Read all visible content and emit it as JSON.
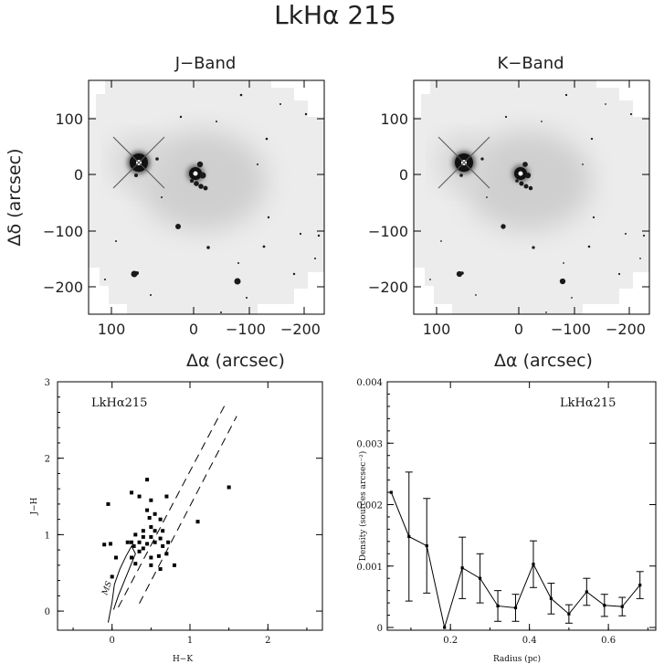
{
  "figure": {
    "title": "LkHα 215"
  },
  "images": {
    "xlabel": "Δα (arcsec)",
    "ylabel": "Δδ (arcsec)",
    "left_title": "J−Band",
    "right_title": "K−Band",
    "x_ticks": [
      "100",
      "0",
      "−100",
      "−200"
    ],
    "y_ticks": [
      "100",
      "0",
      "−100",
      "−200"
    ]
  },
  "chart_data": [
    {
      "type": "scatter",
      "annotation": "LkHα215",
      "xlabel": "H−K",
      "ylabel": "J−H",
      "xlim": [
        -0.7,
        2.7
      ],
      "ylim": [
        -0.25,
        3.0
      ],
      "x_ticks": [
        "0",
        "1",
        "2"
      ],
      "y_ticks": [
        "0",
        "1",
        "2",
        "3"
      ],
      "curve_label": "MS",
      "points": [
        [
          -0.05,
          1.4
        ],
        [
          0.45,
          1.72
        ],
        [
          0.25,
          1.55
        ],
        [
          0.35,
          1.5
        ],
        [
          0.5,
          1.45
        ],
        [
          0.7,
          1.5
        ],
        [
          1.5,
          1.62
        ],
        [
          1.1,
          1.17
        ],
        [
          0.45,
          1.32
        ],
        [
          0.55,
          1.27
        ],
        [
          0.48,
          1.22
        ],
        [
          0.62,
          1.2
        ],
        [
          0.5,
          1.1
        ],
        [
          0.55,
          1.05
        ],
        [
          0.4,
          1.05
        ],
        [
          0.65,
          1.05
        ],
        [
          0.3,
          1.0
        ],
        [
          0.4,
          0.97
        ],
        [
          0.5,
          0.97
        ],
        [
          0.62,
          0.95
        ],
        [
          0.72,
          0.9
        ],
        [
          0.45,
          0.88
        ],
        [
          0.55,
          0.9
        ],
        [
          0.65,
          0.85
        ],
        [
          0.4,
          0.82
        ],
        [
          0.35,
          0.78
        ],
        [
          0.5,
          0.7
        ],
        [
          0.6,
          0.72
        ],
        [
          0.7,
          0.75
        ],
        [
          0.5,
          0.6
        ],
        [
          0.62,
          0.55
        ],
        [
          0.3,
          0.62
        ],
        [
          0.25,
          0.7
        ],
        [
          0.35,
          0.9
        ],
        [
          0.28,
          0.85
        ],
        [
          0.25,
          0.9
        ],
        [
          0.2,
          0.9
        ],
        [
          -0.1,
          0.87
        ],
        [
          -0.02,
          0.88
        ],
        [
          0.05,
          0.7
        ],
        [
          0.0,
          0.45
        ],
        [
          0.8,
          0.6
        ]
      ],
      "ms_curve": [
        [
          -0.05,
          -0.15
        ],
        [
          0.0,
          0.12
        ],
        [
          0.03,
          0.35
        ],
        [
          0.1,
          0.55
        ],
        [
          0.18,
          0.72
        ],
        [
          0.25,
          0.85
        ],
        [
          0.3,
          0.75
        ],
        [
          0.22,
          0.55
        ],
        [
          0.14,
          0.35
        ],
        [
          0.08,
          0.2
        ],
        [
          0.02,
          0.02
        ]
      ],
      "reddening_lines": [
        {
          "from": [
            0.08,
            0.05
          ],
          "to": [
            1.45,
            2.7
          ]
        },
        {
          "from": [
            0.35,
            0.1
          ],
          "to": [
            1.6,
            2.55
          ]
        }
      ]
    },
    {
      "type": "line",
      "annotation": "LkHα215",
      "xlabel": "Radius (pc)",
      "ylabel": "Density (sources arcsec⁻²)",
      "xlim": [
        0.04,
        0.72
      ],
      "ylim": [
        0.0,
        0.004
      ],
      "x_ticks": [
        "0.2",
        "0.4",
        "0.6"
      ],
      "y_ticks": [
        "0",
        "0.001",
        "0.002",
        "0.003",
        "0.004"
      ],
      "x": [
        0.05,
        0.095,
        0.14,
        0.185,
        0.23,
        0.275,
        0.32,
        0.365,
        0.41,
        0.455,
        0.5,
        0.545,
        0.59,
        0.635,
        0.68
      ],
      "values": [
        0.0022,
        0.00148,
        0.00133,
        0.0,
        0.00097,
        0.0008,
        0.00035,
        0.00032,
        0.00103,
        0.00047,
        0.00022,
        0.00058,
        0.00036,
        0.00034,
        0.00069
      ],
      "errors": [
        0.0,
        0.00105,
        0.00077,
        0.0,
        0.0005,
        0.0004,
        0.00025,
        0.00022,
        0.00038,
        0.00025,
        0.00015,
        0.00022,
        0.00018,
        0.00015,
        0.00022
      ]
    }
  ]
}
